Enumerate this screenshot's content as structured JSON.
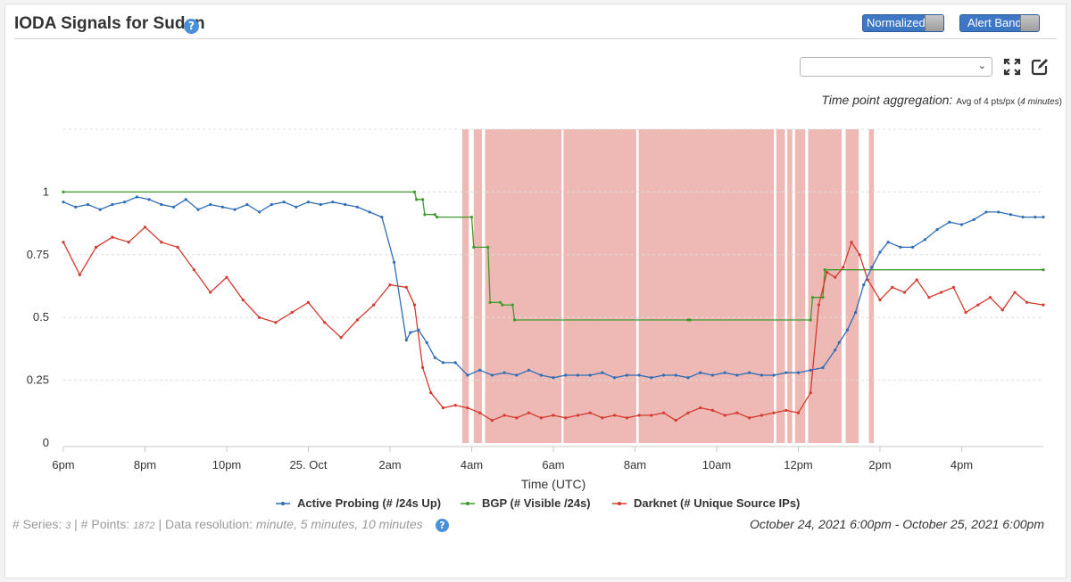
{
  "header": {
    "title": "IODA Signals for Sudan",
    "help_glyph": "?",
    "normalized_label": "Normalized",
    "alert_bands_label": "Alert Bands"
  },
  "toolbar": {
    "select_value": "",
    "icons": [
      "fullscreen-icon",
      "edit-icon"
    ]
  },
  "aggregation": {
    "label": "Time point aggregation:",
    "value": "Avg of 4 pts/px (",
    "value_italic": "4 minutes",
    "value_end": ")"
  },
  "colors": {
    "active_probing": "#2f6db5",
    "bgp": "#3e9a2e",
    "darknet": "#d43a2f",
    "alert_band": "#eeb9b4",
    "grid": "#dddddd"
  },
  "chart_data": {
    "type": "line",
    "xlabel": "Time (UTC)",
    "x_ticks": [
      "6pm",
      "8pm",
      "10pm",
      "25. Oct",
      "2am",
      "4am",
      "6am",
      "8am",
      "10am",
      "12pm",
      "2pm",
      "4pm"
    ],
    "x_tick_hours": [
      0,
      2,
      4,
      6,
      8,
      10,
      12,
      14,
      16,
      18,
      20,
      22
    ],
    "x_range_hours": [
      0,
      24
    ],
    "y_ticks": [
      "0",
      "0.25",
      "0.5",
      "0.75",
      "1"
    ],
    "y_tick_values": [
      0,
      0.25,
      0.5,
      0.75,
      1
    ],
    "ylim": [
      0,
      1.25
    ],
    "grid": true,
    "legend_position": "bottom",
    "alert_bands_hours": [
      [
        9.77,
        9.93
      ],
      [
        10.05,
        10.25
      ],
      [
        10.33,
        12.2
      ],
      [
        12.25,
        14.03
      ],
      [
        14.09,
        17.4
      ],
      [
        17.46,
        17.67
      ],
      [
        17.73,
        17.85
      ],
      [
        17.92,
        18.17
      ],
      [
        18.24,
        19.06
      ],
      [
        19.16,
        19.48
      ],
      [
        19.73,
        19.85
      ]
    ],
    "series": [
      {
        "name": "Active Probing (# /24s Up)",
        "color": "#2f6db5",
        "x": [
          0,
          0.3,
          0.6,
          0.9,
          1.2,
          1.5,
          1.8,
          2.1,
          2.4,
          2.7,
          3,
          3.3,
          3.6,
          3.9,
          4.2,
          4.5,
          4.8,
          5.1,
          5.4,
          5.7,
          6,
          6.3,
          6.6,
          6.9,
          7.2,
          7.5,
          7.8,
          8.1,
          8.4,
          8.5,
          8.7,
          8.9,
          9.1,
          9.3,
          9.6,
          9.9,
          10.2,
          10.5,
          10.8,
          11.1,
          11.4,
          11.7,
          12,
          12.3,
          12.6,
          12.9,
          13.2,
          13.5,
          13.8,
          14.1,
          14.4,
          14.7,
          15,
          15.3,
          15.6,
          15.9,
          16.2,
          16.5,
          16.8,
          17.1,
          17.4,
          17.7,
          18,
          18.3,
          18.6,
          18.9,
          19,
          19.2,
          19.4,
          19.6,
          19.8,
          20,
          20.2,
          20.5,
          20.8,
          21.1,
          21.4,
          21.7,
          22,
          22.3,
          22.6,
          22.9,
          23.2,
          23.5,
          23.8,
          24
        ],
        "y": [
          0.96,
          0.94,
          0.95,
          0.93,
          0.95,
          0.96,
          0.98,
          0.97,
          0.95,
          0.94,
          0.97,
          0.93,
          0.95,
          0.94,
          0.93,
          0.95,
          0.92,
          0.95,
          0.96,
          0.94,
          0.96,
          0.95,
          0.96,
          0.95,
          0.94,
          0.92,
          0.9,
          0.72,
          0.41,
          0.44,
          0.45,
          0.4,
          0.34,
          0.32,
          0.32,
          0.27,
          0.29,
          0.27,
          0.28,
          0.27,
          0.29,
          0.27,
          0.26,
          0.27,
          0.27,
          0.27,
          0.28,
          0.26,
          0.27,
          0.27,
          0.26,
          0.27,
          0.27,
          0.26,
          0.28,
          0.27,
          0.28,
          0.27,
          0.28,
          0.27,
          0.27,
          0.28,
          0.28,
          0.29,
          0.3,
          0.37,
          0.4,
          0.45,
          0.52,
          0.63,
          0.7,
          0.76,
          0.8,
          0.78,
          0.78,
          0.81,
          0.85,
          0.88,
          0.87,
          0.89,
          0.92,
          0.92,
          0.91,
          0.9,
          0.9,
          0.9
        ]
      },
      {
        "name": "BGP (# Visible /24s)",
        "color": "#3e9a2e",
        "x": [
          0,
          8.6,
          8.65,
          8.8,
          8.85,
          9.1,
          9.15,
          10.0,
          10.05,
          10.4,
          10.45,
          10.7,
          10.75,
          11.0,
          11.05,
          15.3,
          15.35,
          18.3,
          18.35,
          18.6,
          18.65,
          24
        ],
        "y": [
          1.0,
          1.0,
          0.97,
          0.97,
          0.91,
          0.91,
          0.9,
          0.9,
          0.78,
          0.78,
          0.56,
          0.56,
          0.55,
          0.55,
          0.49,
          0.49,
          0.49,
          0.49,
          0.58,
          0.58,
          0.69,
          0.69
        ]
      },
      {
        "name": "Darknet (# Unique Source IPs)",
        "color": "#d43a2f",
        "x": [
          0,
          0.4,
          0.8,
          1.2,
          1.6,
          2.0,
          2.4,
          2.8,
          3.2,
          3.6,
          4.0,
          4.4,
          4.8,
          5.2,
          5.6,
          6.0,
          6.4,
          6.8,
          7.2,
          7.6,
          8.0,
          8.4,
          8.6,
          8.8,
          9.0,
          9.3,
          9.6,
          9.9,
          10.2,
          10.5,
          10.8,
          11.1,
          11.4,
          11.7,
          12,
          12.3,
          12.6,
          12.9,
          13.2,
          13.5,
          13.8,
          14.1,
          14.4,
          14.7,
          15,
          15.3,
          15.6,
          15.9,
          16.2,
          16.5,
          16.8,
          17.1,
          17.4,
          17.7,
          18,
          18.3,
          18.5,
          18.7,
          18.9,
          19.1,
          19.3,
          19.5,
          19.7,
          20,
          20.3,
          20.6,
          20.9,
          21.2,
          21.5,
          21.8,
          22.1,
          22.4,
          22.7,
          23,
          23.3,
          23.6,
          24
        ],
        "y": [
          0.8,
          0.67,
          0.78,
          0.82,
          0.8,
          0.86,
          0.8,
          0.78,
          0.69,
          0.6,
          0.66,
          0.57,
          0.5,
          0.48,
          0.52,
          0.56,
          0.48,
          0.42,
          0.49,
          0.55,
          0.63,
          0.62,
          0.55,
          0.3,
          0.2,
          0.14,
          0.15,
          0.14,
          0.12,
          0.09,
          0.11,
          0.1,
          0.12,
          0.1,
          0.11,
          0.1,
          0.11,
          0.12,
          0.1,
          0.11,
          0.1,
          0.11,
          0.11,
          0.12,
          0.09,
          0.12,
          0.14,
          0.13,
          0.11,
          0.12,
          0.1,
          0.11,
          0.12,
          0.13,
          0.12,
          0.2,
          0.55,
          0.68,
          0.66,
          0.7,
          0.8,
          0.75,
          0.65,
          0.57,
          0.62,
          0.6,
          0.65,
          0.58,
          0.6,
          0.62,
          0.52,
          0.55,
          0.58,
          0.53,
          0.6,
          0.56,
          0.55
        ]
      }
    ]
  },
  "footer": {
    "series_label": "# Series:",
    "series_count": "3",
    "points_label": "| # Points:",
    "points_count": "1872",
    "resolution_label": "| Data resolution:",
    "resolution_value": "minute, 5 minutes, 10 minutes",
    "date_range": "October 24, 2021 6:00pm - October 25, 2021 6:00pm"
  }
}
